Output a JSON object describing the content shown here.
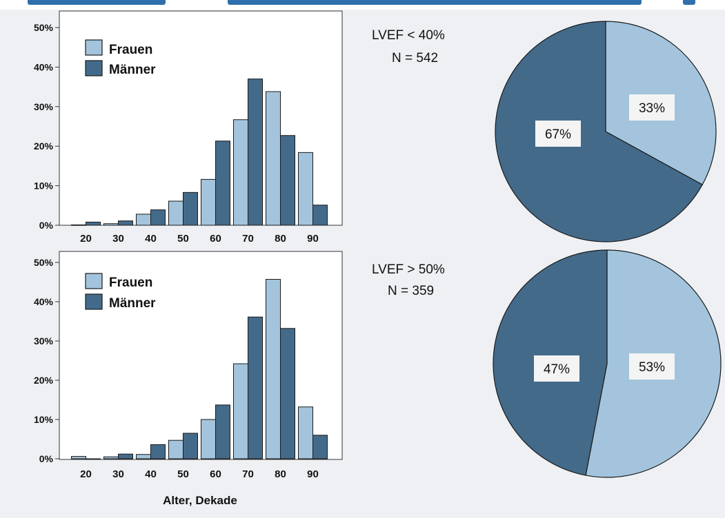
{
  "colors": {
    "frauen": "#a3c4dc",
    "maenner": "#446a8a",
    "background": "#eef0f3",
    "plot_bg": "#ffffff",
    "stroke": "#1a1a1a"
  },
  "xlabel": "Alter, Dekade",
  "chart_data": [
    {
      "type": "bar",
      "ylim": [
        0,
        50
      ],
      "yticks": [
        "0%",
        "10%",
        "20%",
        "30%",
        "40%",
        "50%"
      ],
      "categories": [
        "20",
        "30",
        "40",
        "50",
        "60",
        "70",
        "80",
        "90"
      ],
      "series": [
        {
          "name": "Frauen",
          "values": [
            0.1,
            0.4,
            2.8,
            6.1,
            11.6,
            26.7,
            33.8,
            18.4
          ]
        },
        {
          "name": "Männer",
          "values": [
            0.8,
            1.1,
            3.9,
            8.3,
            21.3,
            37.0,
            22.7,
            5.1
          ]
        }
      ],
      "legend": [
        "Frauen",
        "Männer"
      ],
      "legend_position": "top-left",
      "xlabel": "",
      "ylabel": ""
    },
    {
      "type": "bar",
      "ylim": [
        0,
        50
      ],
      "yticks": [
        "0%",
        "10%",
        "20%",
        "30%",
        "40%",
        "50%"
      ],
      "categories": [
        "20",
        "30",
        "40",
        "50",
        "60",
        "70",
        "80",
        "90"
      ],
      "series": [
        {
          "name": "Frauen",
          "values": [
            0.6,
            0.5,
            1.1,
            4.7,
            10.0,
            24.2,
            45.7,
            13.2
          ]
        },
        {
          "name": "Männer",
          "values": [
            0.0,
            1.2,
            3.6,
            6.5,
            13.7,
            36.1,
            33.2,
            6.0
          ]
        }
      ],
      "legend": [
        "Frauen",
        "Männer"
      ],
      "legend_position": "top-left",
      "xlabel": "Alter, Dekade",
      "ylabel": ""
    },
    {
      "type": "pie",
      "annotation": [
        "LVEF < 40%",
        "N = 542"
      ],
      "slices": [
        {
          "name": "Frauen",
          "value": 33,
          "label": "33%"
        },
        {
          "name": "Männer",
          "value": 67,
          "label": "67%"
        }
      ]
    },
    {
      "type": "pie",
      "annotation": [
        "LVEF > 50%",
        "N = 359"
      ],
      "slices": [
        {
          "name": "Frauen",
          "value": 53,
          "label": "53%"
        },
        {
          "name": "Männer",
          "value": 47,
          "label": "47%"
        }
      ]
    }
  ]
}
